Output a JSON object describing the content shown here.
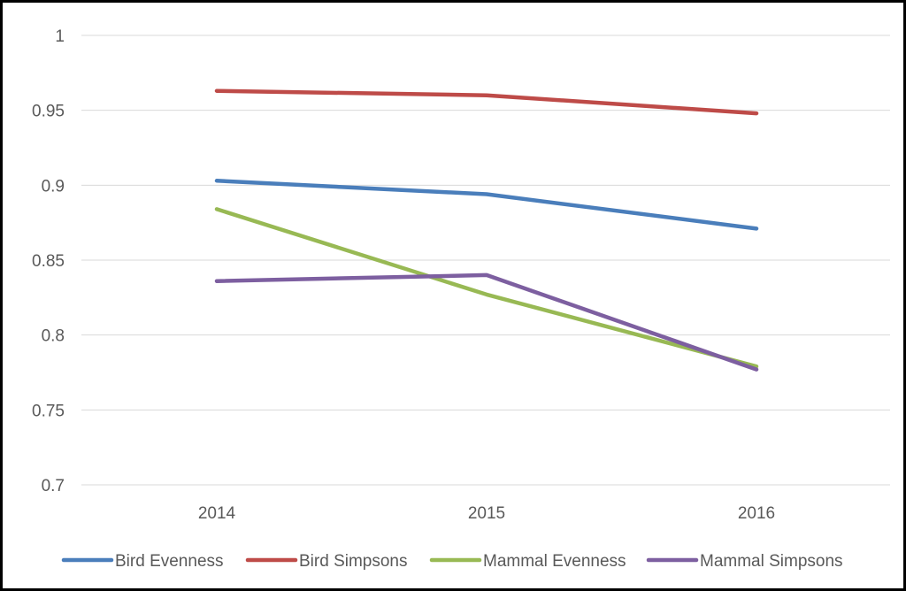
{
  "chart_data": {
    "type": "line",
    "title": "",
    "xlabel": "",
    "ylabel": "",
    "categories": [
      "2014",
      "2015",
      "2016"
    ],
    "ylim": [
      0.7,
      1
    ],
    "yticks": [
      0.7,
      0.75,
      0.8,
      0.85,
      0.9,
      0.95,
      1
    ],
    "ytick_labels": [
      "0.7",
      "0.75",
      "0.8",
      "0.85",
      "0.9",
      "0.95",
      "1"
    ],
    "grid": true,
    "legend_position": "bottom",
    "series": [
      {
        "name": "Bird Evenness",
        "color": "#4a7ebb",
        "values": [
          0.903,
          0.894,
          0.871
        ]
      },
      {
        "name": "Bird Simpsons",
        "color": "#be4b48",
        "values": [
          0.963,
          0.96,
          0.948
        ]
      },
      {
        "name": "Mammal Evenness",
        "color": "#98b954",
        "values": [
          0.884,
          0.827,
          0.779
        ]
      },
      {
        "name": "Mammal Simpsons",
        "color": "#7d5fa0",
        "values": [
          0.836,
          0.84,
          0.777
        ]
      }
    ]
  }
}
